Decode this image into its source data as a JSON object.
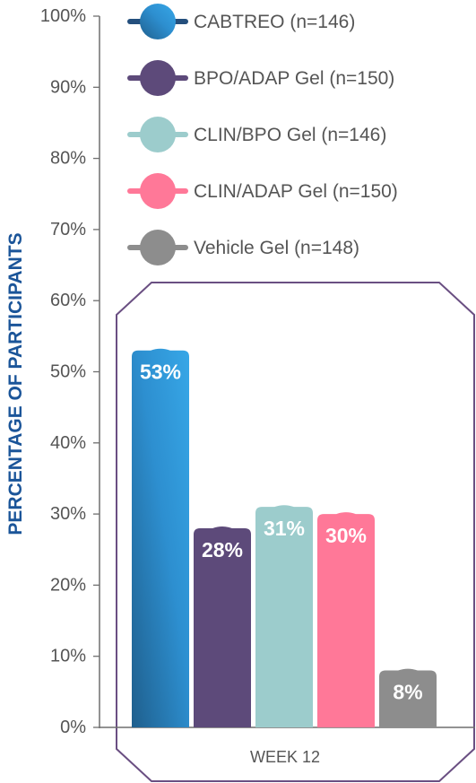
{
  "chart_data": {
    "type": "bar",
    "ylabel": "PERCENTAGE OF PARTICIPANTS",
    "xlabel": "",
    "ylim": [
      0,
      100
    ],
    "y_ticks": [
      "0%",
      "10%",
      "20%",
      "30%",
      "40%",
      "50%",
      "60%",
      "70%",
      "80%",
      "90%",
      "100%"
    ],
    "categories": [
      "WEEK 12"
    ],
    "legend_position": "top-right",
    "series": [
      {
        "name": "CABTREO (n=146)",
        "values": [
          53
        ],
        "label": "53%",
        "color": "#2a86c5"
      },
      {
        "name": "BPO/ADAP Gel (n=150)",
        "values": [
          28
        ],
        "label": "28%",
        "color": "#5d4a7a"
      },
      {
        "name": "CLIN/BPO Gel (n=146)",
        "values": [
          31
        ],
        "label": "31%",
        "color": "#9ccccc"
      },
      {
        "name": "CLIN/ADAP Gel (n=150)",
        "values": [
          30
        ],
        "label": "30%",
        "color": "#ff7898"
      },
      {
        "name": "Vehicle Gel (n=148)",
        "values": [
          8
        ],
        "label": "8%",
        "color": "#8d8d8d"
      }
    ]
  },
  "colors": {
    "axis_label": "#1b5599",
    "frame": "#6a4f82",
    "axis": "#6f6f6f",
    "text": "#555555"
  }
}
